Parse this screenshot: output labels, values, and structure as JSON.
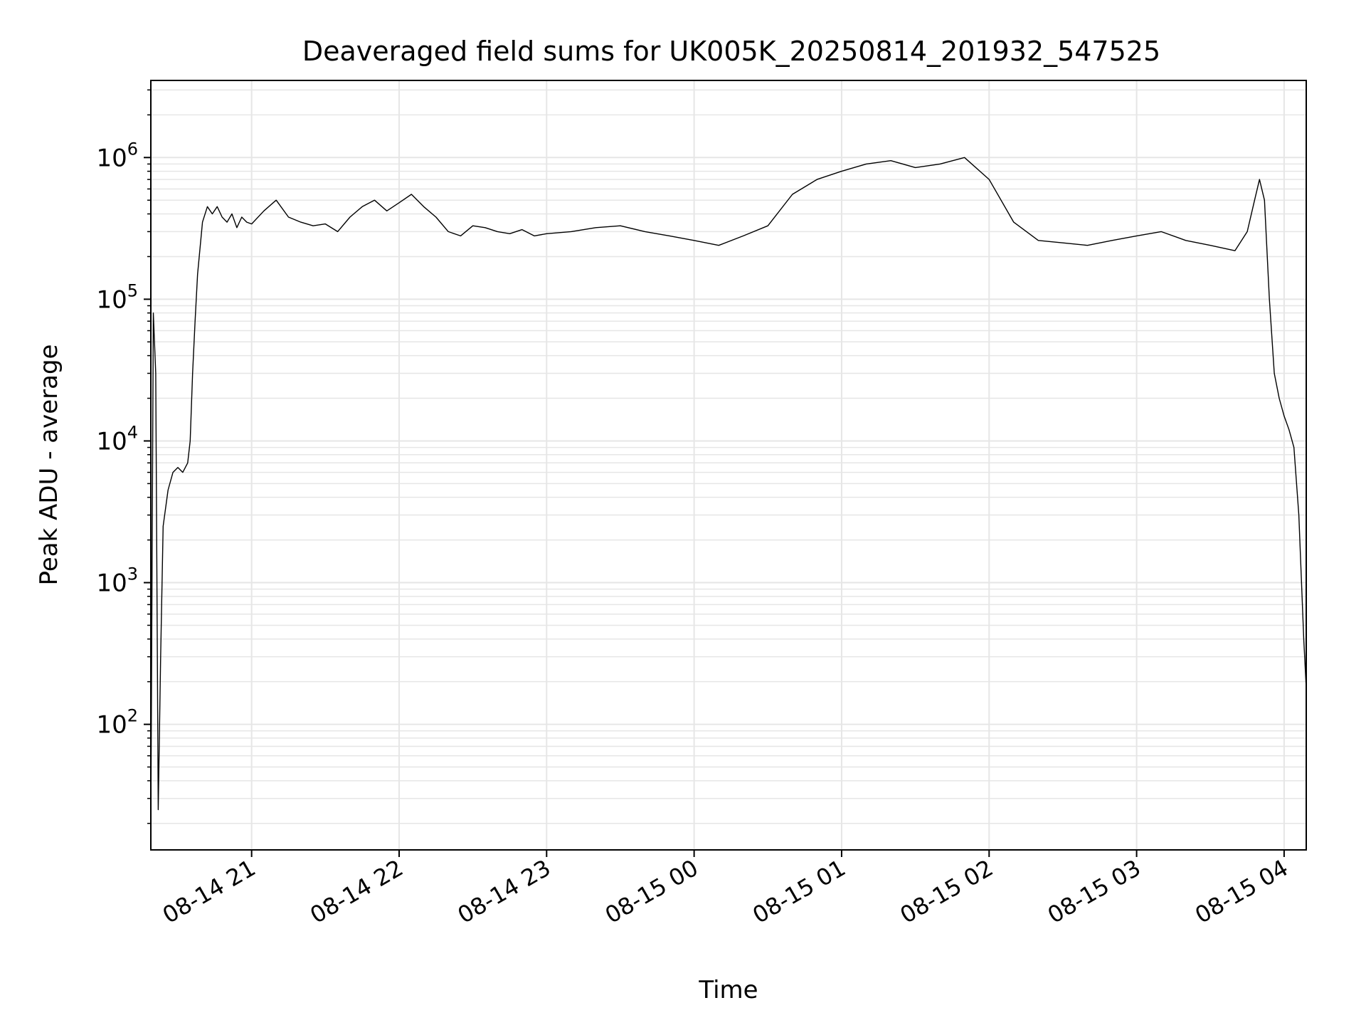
{
  "chart_data": {
    "type": "line",
    "title": "Deaveraged field sums for UK005K_20250814_201932_547525",
    "xlabel": "Time",
    "ylabel": "Peak ADU - average",
    "yscale": "log",
    "ylim": [
      13,
      3500000
    ],
    "xlim": [
      "2025-08-14 20:19",
      "2025-08-15 04:09"
    ],
    "grid": true,
    "x_ticks": [
      {
        "t": "2025-08-14 21:00",
        "label": "08-14 21"
      },
      {
        "t": "2025-08-14 22:00",
        "label": "08-14 22"
      },
      {
        "t": "2025-08-14 23:00",
        "label": "08-14 23"
      },
      {
        "t": "2025-08-15 00:00",
        "label": "08-15 00"
      },
      {
        "t": "2025-08-15 01:00",
        "label": "08-15 01"
      },
      {
        "t": "2025-08-15 02:00",
        "label": "08-15 02"
      },
      {
        "t": "2025-08-15 03:00",
        "label": "08-15 03"
      },
      {
        "t": "2025-08-15 04:00",
        "label": "08-15 04"
      }
    ],
    "y_ticks": [
      {
        "value": 100,
        "base": "10",
        "exp": "2"
      },
      {
        "value": 1000,
        "base": "10",
        "exp": "3"
      },
      {
        "value": 10000,
        "base": "10",
        "exp": "4"
      },
      {
        "value": 100000,
        "base": "10",
        "exp": "5"
      },
      {
        "value": 1000000,
        "base": "10",
        "exp": "6"
      }
    ],
    "line_color": "#000000",
    "series": [
      {
        "x": [
          "2025-08-14 20:19",
          "2025-08-14 20:20",
          "2025-08-14 20:21",
          "2025-08-14 20:22",
          "2025-08-14 20:23",
          "2025-08-14 20:24",
          "2025-08-14 20:26",
          "2025-08-14 20:28",
          "2025-08-14 20:30",
          "2025-08-14 20:32",
          "2025-08-14 20:34",
          "2025-08-14 20:35",
          "2025-08-14 20:36",
          "2025-08-14 20:37",
          "2025-08-14 20:38",
          "2025-08-14 20:40",
          "2025-08-14 20:42",
          "2025-08-14 20:44",
          "2025-08-14 20:46",
          "2025-08-14 20:48",
          "2025-08-14 20:50",
          "2025-08-14 20:52",
          "2025-08-14 20:54",
          "2025-08-14 20:56",
          "2025-08-14 20:58",
          "2025-08-14 21:00",
          "2025-08-14 21:05",
          "2025-08-14 21:10",
          "2025-08-14 21:15",
          "2025-08-14 21:20",
          "2025-08-14 21:25",
          "2025-08-14 21:30",
          "2025-08-14 21:35",
          "2025-08-14 21:40",
          "2025-08-14 21:45",
          "2025-08-14 21:50",
          "2025-08-14 21:55",
          "2025-08-14 22:00",
          "2025-08-14 22:05",
          "2025-08-14 22:10",
          "2025-08-14 22:15",
          "2025-08-14 22:20",
          "2025-08-14 22:25",
          "2025-08-14 22:30",
          "2025-08-14 22:35",
          "2025-08-14 22:40",
          "2025-08-14 22:45",
          "2025-08-14 22:50",
          "2025-08-14 22:55",
          "2025-08-14 23:00",
          "2025-08-14 23:10",
          "2025-08-14 23:20",
          "2025-08-14 23:30",
          "2025-08-14 23:40",
          "2025-08-14 23:50",
          "2025-08-15 00:00",
          "2025-08-15 00:10",
          "2025-08-15 00:20",
          "2025-08-15 00:30",
          "2025-08-15 00:40",
          "2025-08-15 00:50",
          "2025-08-15 01:00",
          "2025-08-15 01:10",
          "2025-08-15 01:20",
          "2025-08-15 01:30",
          "2025-08-15 01:40",
          "2025-08-15 01:50",
          "2025-08-15 02:00",
          "2025-08-15 02:10",
          "2025-08-15 02:20",
          "2025-08-15 02:30",
          "2025-08-15 02:40",
          "2025-08-15 02:50",
          "2025-08-15 03:00",
          "2025-08-15 03:10",
          "2025-08-15 03:20",
          "2025-08-15 03:30",
          "2025-08-15 03:40",
          "2025-08-15 03:45",
          "2025-08-15 03:48",
          "2025-08-15 03:50",
          "2025-08-15 03:52",
          "2025-08-15 03:54",
          "2025-08-15 03:56",
          "2025-08-15 03:58",
          "2025-08-15 04:00",
          "2025-08-15 04:02",
          "2025-08-15 04:04",
          "2025-08-15 04:06",
          "2025-08-15 04:08",
          "2025-08-15 04:09"
        ],
        "y": [
          20,
          80000,
          30000,
          25,
          300,
          2500,
          4500,
          6000,
          6500,
          6000,
          7000,
          10000,
          30000,
          70000,
          150000,
          350000,
          450000,
          400000,
          450000,
          380000,
          350000,
          400000,
          320000,
          380000,
          350000,
          340000,
          420000,
          500000,
          380000,
          350000,
          330000,
          340000,
          300000,
          380000,
          450000,
          500000,
          420000,
          480000,
          550000,
          450000,
          380000,
          300000,
          280000,
          330000,
          320000,
          300000,
          290000,
          310000,
          280000,
          290000,
          300000,
          320000,
          330000,
          300000,
          280000,
          260000,
          240000,
          280000,
          330000,
          550000,
          700000,
          800000,
          900000,
          950000,
          850000,
          900000,
          1000000,
          700000,
          350000,
          260000,
          250000,
          240000,
          260000,
          280000,
          300000,
          260000,
          240000,
          220000,
          300000,
          500000,
          700000,
          500000,
          100000,
          30000,
          20000,
          15000,
          12000,
          9000,
          3000,
          400,
          180
        ]
      }
    ]
  }
}
